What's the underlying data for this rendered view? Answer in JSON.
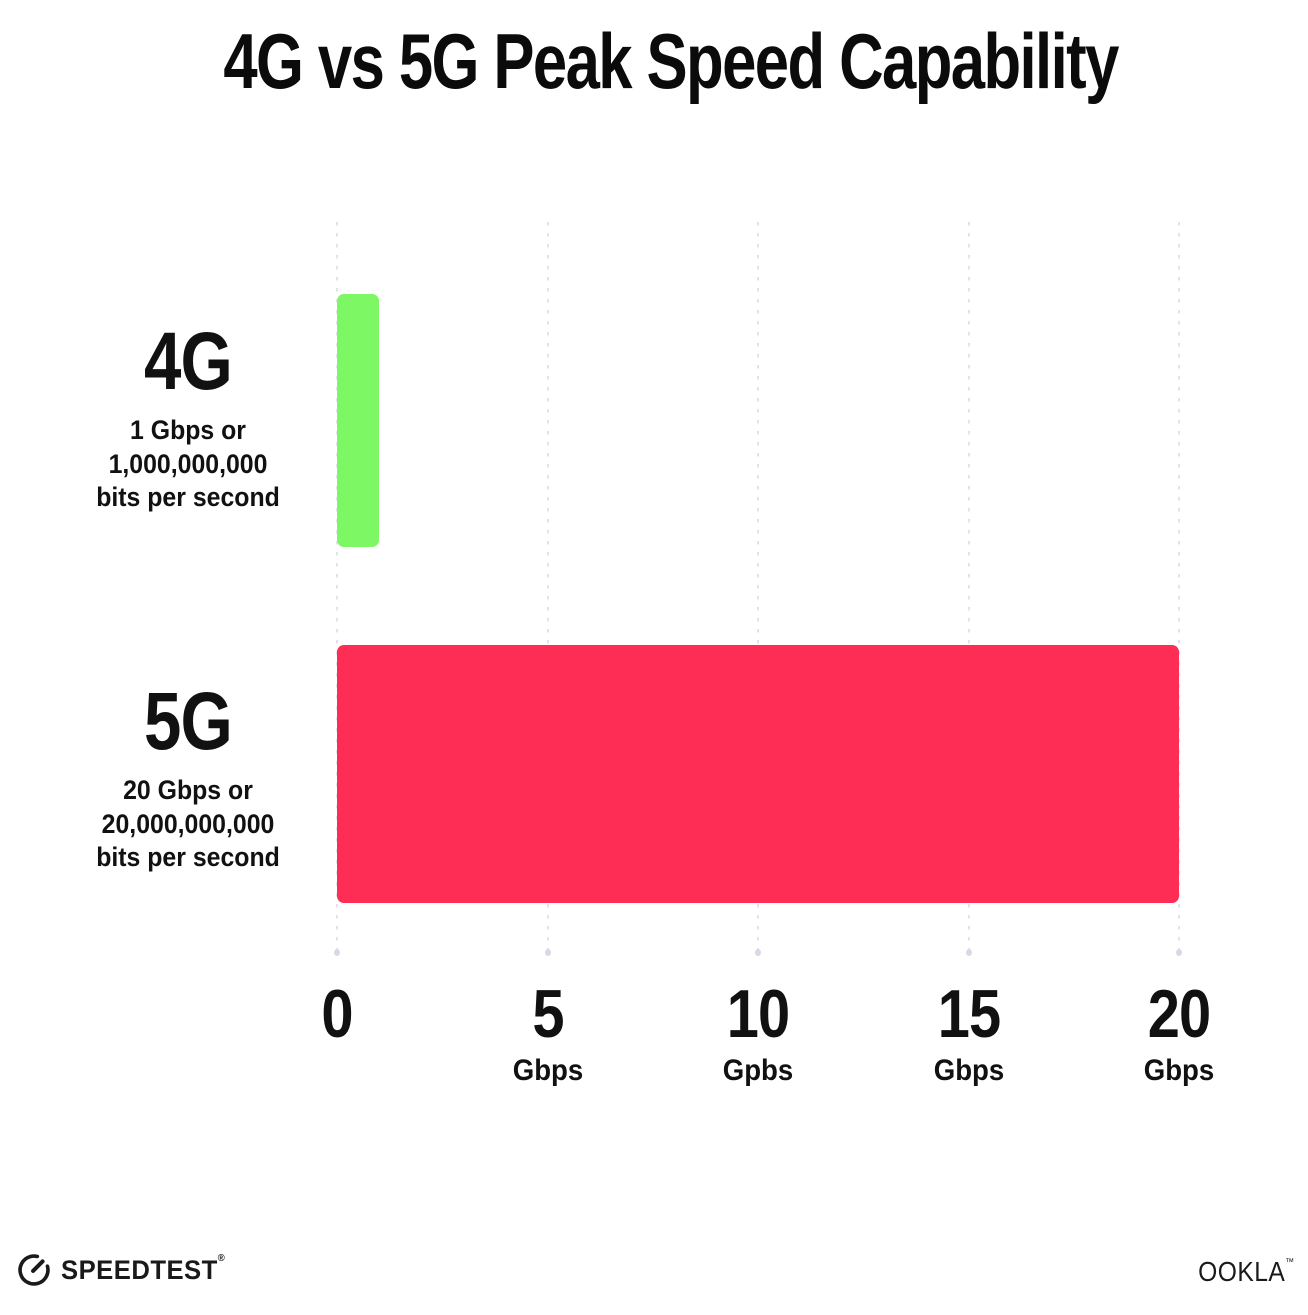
{
  "title": "4G vs 5G Peak Speed Capability",
  "chart_data": {
    "type": "bar",
    "orientation": "horizontal",
    "title": "4G vs 5G Peak Speed Capability",
    "categories": [
      "4G",
      "5G"
    ],
    "values": [
      1,
      20
    ],
    "value_unit": "Gbps",
    "xlim": [
      0,
      20
    ],
    "x_tick_interval": 5,
    "grid": "vertical-dotted",
    "legend": "none",
    "bar_colors": [
      "#7DF763",
      "#FD2D55"
    ],
    "annotations": [
      "4G: 1 Gbps or 1,000,000,000 bits per second",
      "5G: 20 Gbps or 20,000,000,000 bits per second"
    ],
    "x_ticks": [
      {
        "number": "0",
        "unit": ""
      },
      {
        "number": "5",
        "unit": "Gbps"
      },
      {
        "number": "10",
        "unit": "Gpbs"
      },
      {
        "number": "15",
        "unit": "Gbps"
      },
      {
        "number": "20",
        "unit": "Gbps"
      }
    ]
  },
  "rows": [
    {
      "name": "4G",
      "desc_line1": "1 Gbps or",
      "desc_line2": "1,000,000,000",
      "desc_line3": "bits per second",
      "value": 1,
      "color": "#7DF763"
    },
    {
      "name": "5G",
      "desc_line1": "20 Gbps or",
      "desc_line2": "20,000,000,000",
      "desc_line3": "bits per second",
      "value": 20,
      "color": "#FD2D55"
    }
  ],
  "footer": {
    "speedtest_label": "SPEEDTEST",
    "speedtest_mark": "®",
    "ookla_label": "OOKLA",
    "ookla_mark": "™"
  },
  "colors": {
    "background": "#FFFFFF",
    "text": "#111111",
    "bar_4g": "#7DF763",
    "bar_5g": "#FD2D55",
    "gridline": "#E2E2EE",
    "logo": "#1A1A1A"
  }
}
